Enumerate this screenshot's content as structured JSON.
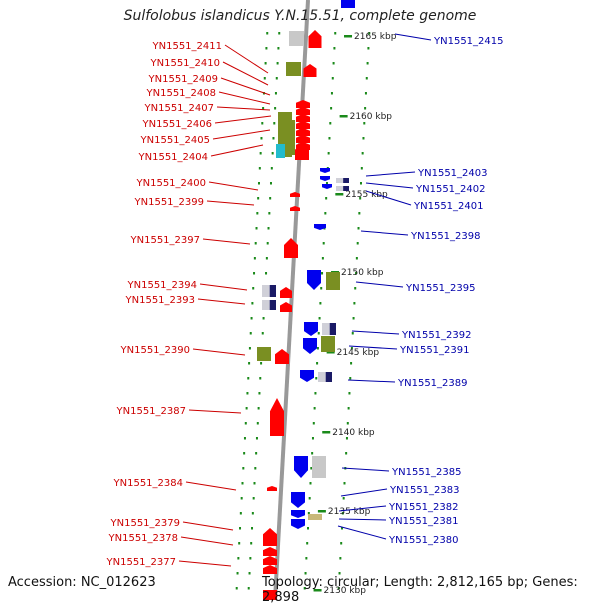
{
  "title": "Sulfolobus islandicus Y.N.15.51, complete genome",
  "footer": {
    "accession": "Accession: NC_012623",
    "topology": "Topology: circular; Length: 2,812,165 bp; Genes: 2,898"
  },
  "colors": {
    "backbone": "#999999",
    "tick": "#1a8a1a",
    "left_label": "#cc0000",
    "right_label": "#0000aa",
    "red_gene": "#ff0000",
    "blue_gene": "#0000ee",
    "olive_box": "#7a8f22",
    "grey_box": "#c8c8c8",
    "cyan_box": "#22bbcc",
    "tan_box": "#c8b878"
  },
  "scale_labels": [
    "2165 kbp",
    "2160 kbp",
    "2155 kbp",
    "2150 kbp",
    "2145 kbp",
    "2140 kbp",
    "2135 kbp",
    "2130 kbp"
  ],
  "left_genes": [
    "YN1551_2411",
    "YN1551_2410",
    "YN1551_2409",
    "YN1551_2408",
    "YN1551_2407",
    "YN1551_2406",
    "YN1551_2405",
    "YN1551_2404",
    "YN1551_2400",
    "YN1551_2399",
    "YN1551_2397",
    "YN1551_2394",
    "YN1551_2393",
    "YN1551_2390",
    "YN1551_2387",
    "YN1551_2384",
    "YN1551_2379",
    "YN1551_2378",
    "YN1551_2377"
  ],
  "right_genes": [
    "YN1551_2415",
    "YN1551_2403",
    "YN1551_2402",
    "YN1551_2401",
    "YN1551_2398",
    "YN1551_2395",
    "YN1551_2392",
    "YN1551_2391",
    "YN1551_2389",
    "YN1551_2385",
    "YN1551_2383",
    "YN1551_2382",
    "YN1551_2381",
    "YN1551_2380"
  ]
}
